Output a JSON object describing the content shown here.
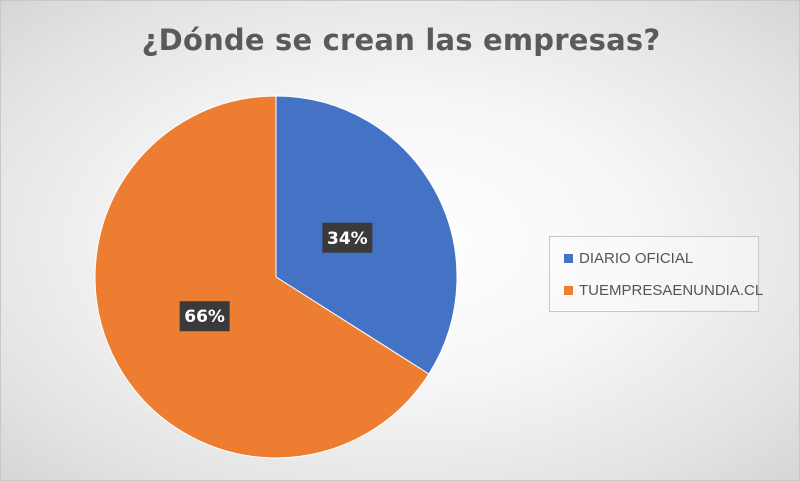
{
  "chart_data": {
    "type": "pie",
    "title": "¿Dónde se crean las empresas?",
    "categories": [
      "DIARIO OFICIAL",
      "TUEMPRESAENUNDIA.CL"
    ],
    "values": [
      34,
      66
    ],
    "data_labels": [
      "34%",
      "66%"
    ],
    "colors": [
      "#4472C4",
      "#ED7D31"
    ],
    "label_box_color": "#3a3a3a",
    "legend_position": "right",
    "start_angle": "top (12 o'clock), clockwise"
  }
}
